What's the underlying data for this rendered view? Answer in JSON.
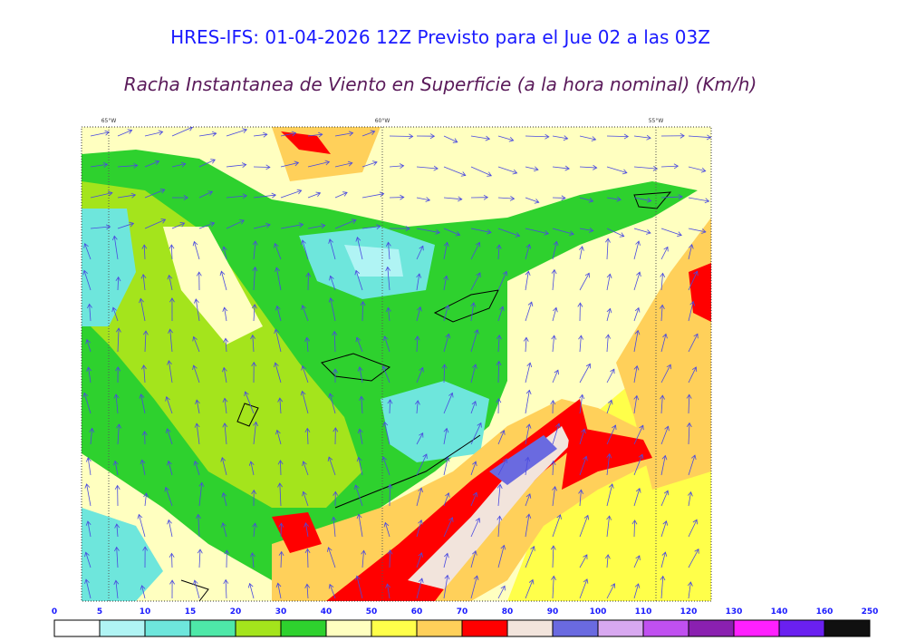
{
  "header": {
    "title": "HRES-IFS: 01-04-2026 12Z Previsto para el Jue 02 a las 03Z",
    "subtitle": "Racha Instantanea de Viento en Superficie (a la hora nominal) (Km/h)"
  },
  "map": {
    "longitude_labels": [
      "65°W",
      "60°W",
      "55°W"
    ]
  },
  "colorbar": {
    "levels": [
      0,
      5,
      10,
      15,
      20,
      30,
      40,
      50,
      60,
      70,
      80,
      90,
      100,
      110,
      120,
      130,
      140,
      160,
      250
    ],
    "colors": [
      "#ffffff",
      "#b0f4f4",
      "#6ee6dc",
      "#4ee8a8",
      "#a4e41c",
      "#2ed12e",
      "#ffffc0",
      "#ffff4a",
      "#ffd05a",
      "#ff0000",
      "#f2e4dc",
      "#6a6ae0",
      "#d8a8f0",
      "#c050f0",
      "#8a20b0",
      "#ff20ff",
      "#6a20f0",
      "#101010"
    ]
  }
}
